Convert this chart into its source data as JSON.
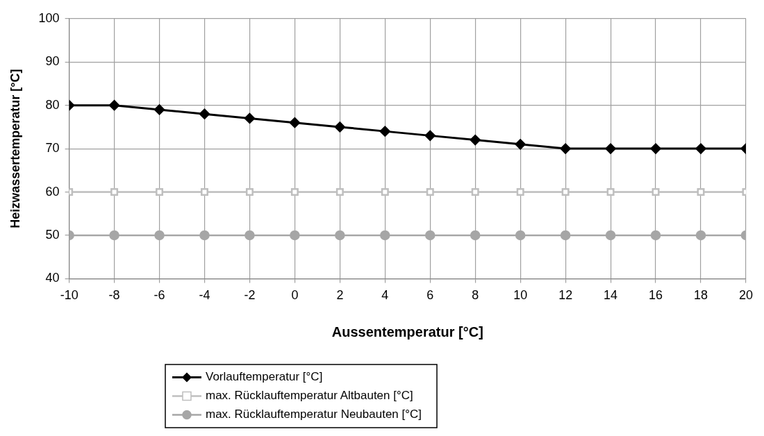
{
  "chart_data": {
    "type": "line",
    "xlabel": "Aussentemperatur [°C]",
    "ylabel": "Heizwassertemperatur [°C]",
    "x": [
      -10,
      -8,
      -6,
      -4,
      -2,
      0,
      2,
      4,
      6,
      8,
      10,
      12,
      14,
      16,
      18,
      20
    ],
    "xlim": [
      -10,
      20
    ],
    "xticks": [
      -10,
      -8,
      -6,
      -4,
      -2,
      0,
      2,
      4,
      6,
      8,
      10,
      12,
      14,
      16,
      18,
      20
    ],
    "ylim": [
      40,
      100
    ],
    "yticks": [
      40,
      50,
      60,
      70,
      80,
      90,
      100
    ],
    "grid": true,
    "legend": "bottom",
    "line_style": "solid",
    "series": [
      {
        "name": "Vorlauftemperatur [°C]",
        "color": "#000000",
        "marker": "diamond",
        "values": [
          80,
          80,
          79,
          78,
          77,
          76,
          75,
          74,
          73,
          72,
          71,
          70,
          70,
          70,
          70,
          70
        ]
      },
      {
        "name": "max. Rücklauftemperatur Altbauten [°C]",
        "color": "#bfbfbf",
        "marker": "square",
        "values": [
          60,
          60,
          60,
          60,
          60,
          60,
          60,
          60,
          60,
          60,
          60,
          60,
          60,
          60,
          60,
          60
        ]
      },
      {
        "name": "max. Rücklauftemperatur Neubauten [°C]",
        "color": "#a6a6a6",
        "marker": "circle",
        "values": [
          50,
          50,
          50,
          50,
          50,
          50,
          50,
          50,
          50,
          50,
          50,
          50,
          50,
          50,
          50,
          50
        ]
      }
    ]
  }
}
